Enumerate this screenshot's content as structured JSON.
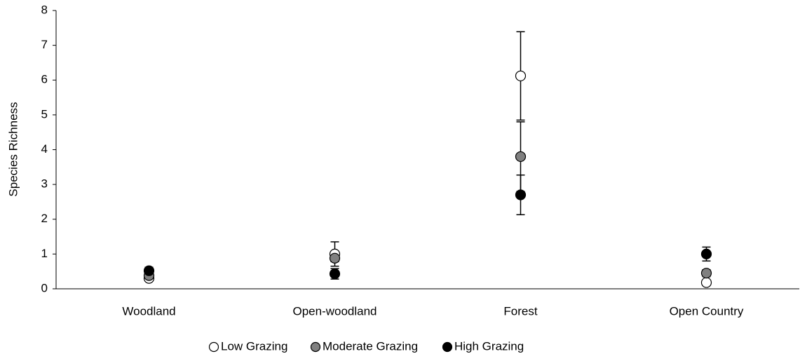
{
  "chart_data": {
    "type": "dot-errorbar",
    "y_label": "Species Richness",
    "categories": [
      "Woodland",
      "Open-woodland",
      "Forest",
      "Open Country"
    ],
    "series": [
      {
        "name": "Low Grazing",
        "color": "#ffffff",
        "values": [
          0.3,
          1.0,
          6.12,
          0.18
        ],
        "errors": [
          0.05,
          0.35,
          1.27,
          0.05
        ]
      },
      {
        "name": "Moderate Grazing",
        "color": "#808080",
        "values": [
          0.38,
          0.88,
          3.8,
          0.45
        ],
        "errors": [
          0.08,
          0.1,
          1.0,
          0.1
        ]
      },
      {
        "name": "High Grazing",
        "color": "#000000",
        "values": [
          0.52,
          0.43,
          2.7,
          1.0
        ],
        "errors": [
          0.1,
          0.15,
          0.57,
          0.2
        ]
      }
    ],
    "ylim": [
      0,
      8
    ],
    "yticks": [
      0,
      1,
      2,
      3,
      4,
      5,
      6,
      7,
      8
    ],
    "grid": false,
    "legend": "bottom"
  }
}
